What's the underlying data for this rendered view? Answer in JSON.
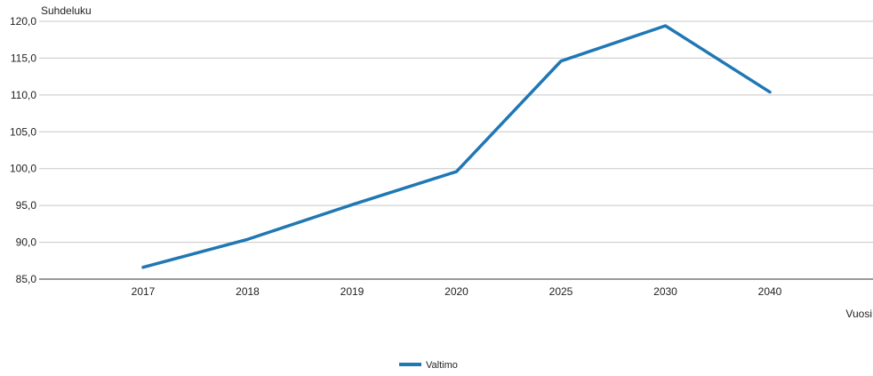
{
  "chart_data": {
    "type": "line",
    "ylabel": "Suhdeluku",
    "xlabel": "Vuosi",
    "categories": [
      "2017",
      "2018",
      "2019",
      "2020",
      "2025",
      "2030",
      "2040"
    ],
    "series": [
      {
        "name": "Valtimo",
        "color": "#1f77b4",
        "values": [
          86.6,
          90.4,
          95.1,
          99.6,
          114.6,
          119.4,
          110.4
        ]
      }
    ],
    "ylim": [
      85,
      120
    ],
    "yticks": [
      "85,0",
      "90,0",
      "95,0",
      "100,0",
      "105,0",
      "110,0",
      "115,0",
      "120,0"
    ],
    "grid": true,
    "legend": "bottom-center"
  }
}
